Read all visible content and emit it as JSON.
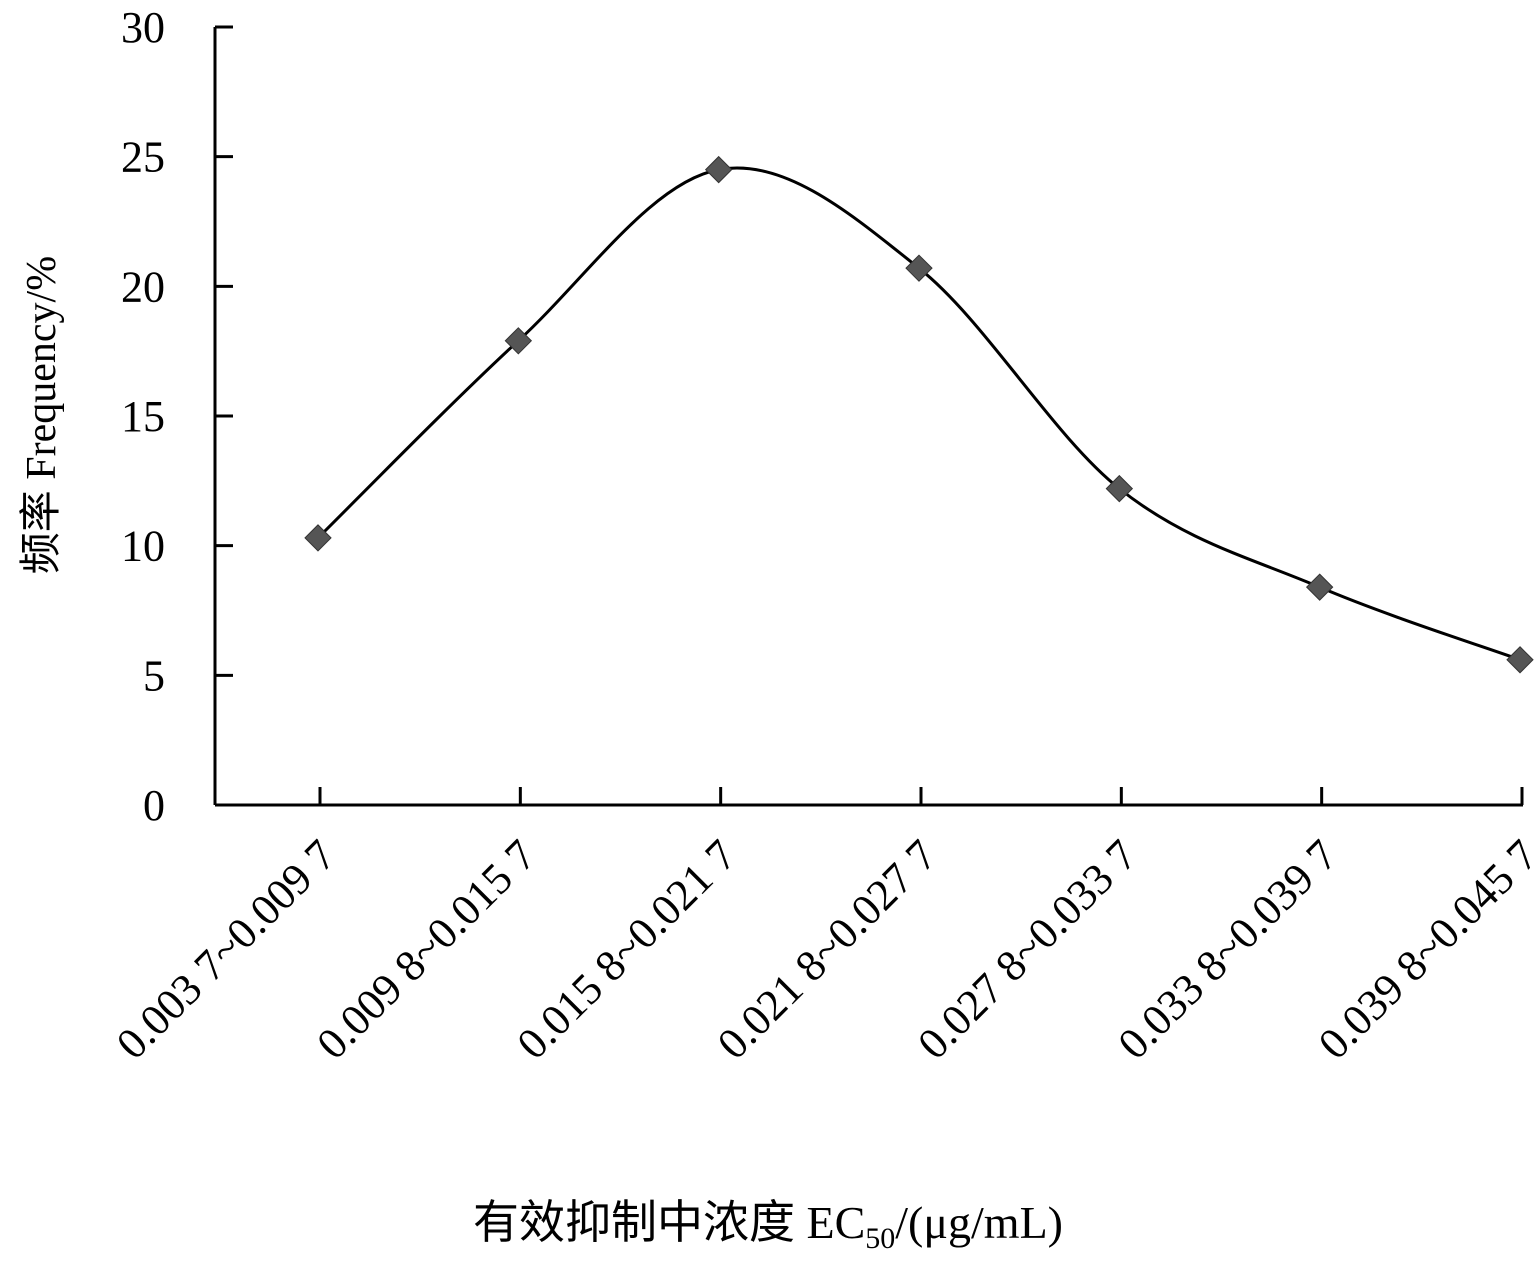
{
  "chart_data": {
    "type": "line",
    "smooth": true,
    "marker": "diamond",
    "line_color": "#000000",
    "marker_color": "#555555",
    "categories": [
      "0.003 7~0.009 7",
      "0.009 8~0.015 7",
      "0.015 8~0.021 7",
      "0.021 8~0.027 7",
      "0.027 8~0.033 7",
      "0.033 8~0.039 7",
      "0.039 8~0.045 7"
    ],
    "values": [
      10.3,
      17.9,
      24.5,
      20.7,
      12.2,
      8.4,
      5.6
    ],
    "ylim": [
      0,
      30
    ],
    "yticks": [
      0,
      5,
      10,
      15,
      20,
      25,
      30
    ],
    "grid": false,
    "ylabel": "频率 Frequency/%",
    "xlabel": {
      "prefix": "有效抑制中浓度  EC",
      "subscript": "50",
      "suffix": "/(μg/mL)"
    }
  }
}
